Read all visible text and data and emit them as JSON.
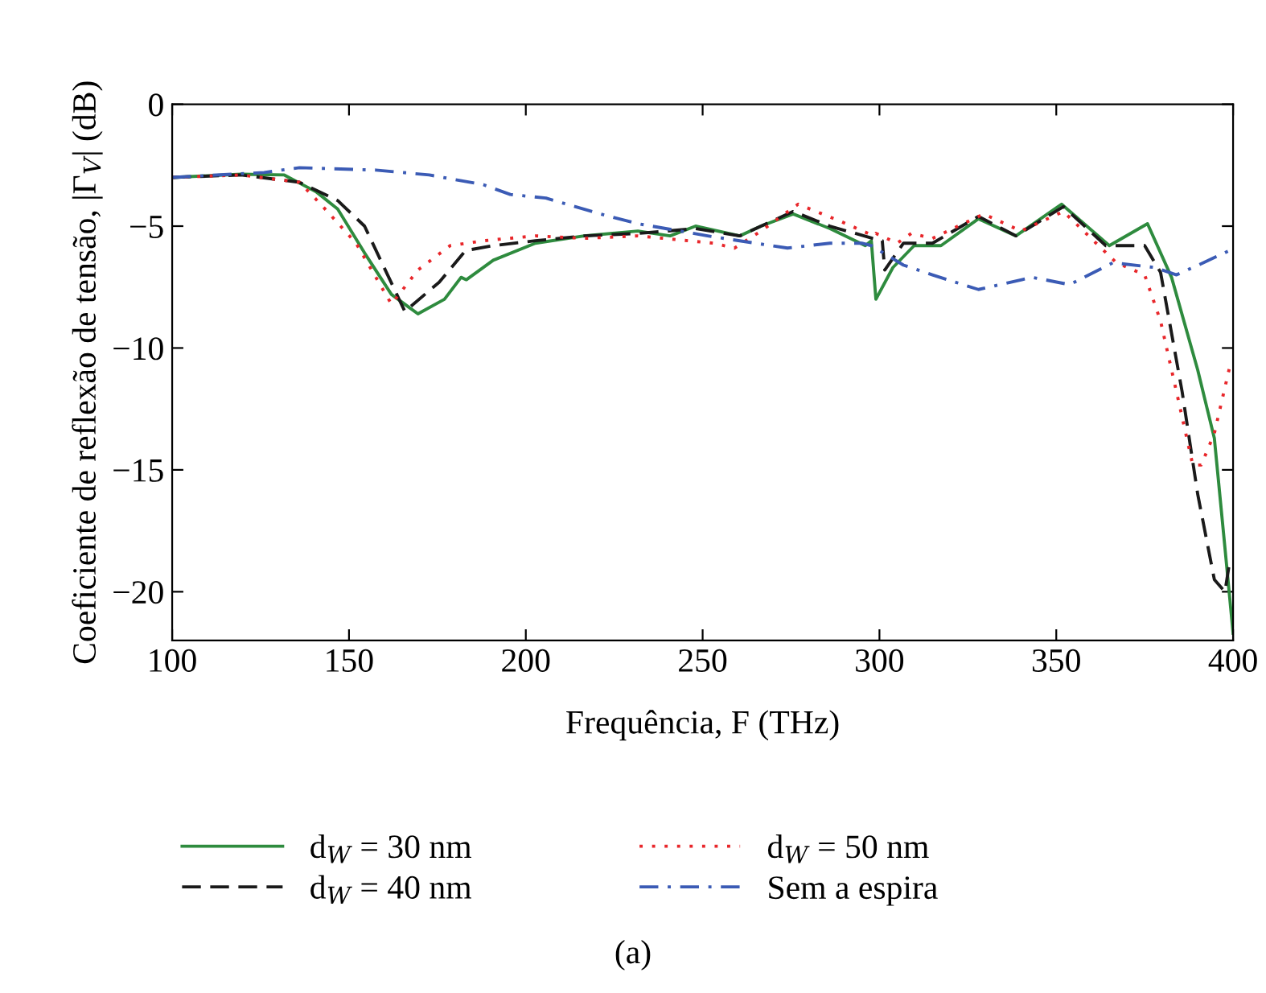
{
  "chart_data": {
    "type": "line",
    "xlabel": "Frequência, F (THz)",
    "ylabel": "Coeficiente de reflexão de tensão, |Γ$_{V}$| (dB)",
    "annotations": [
      "(a)"
    ],
    "xlim": [
      100,
      400
    ],
    "ylim": [
      -22,
      0
    ],
    "xticks": [
      100,
      150,
      200,
      250,
      300,
      350,
      400
    ],
    "yticks": [
      0,
      {
        "value": -5,
        "label": "−5"
      },
      {
        "value": -10,
        "label": "−10"
      },
      {
        "value": -15,
        "label": "−15"
      },
      {
        "value": -20,
        "label": "−20"
      }
    ],
    "grid": false,
    "legend": "bottom",
    "series": [
      {
        "name": "d$_{W}$ = 30 nm",
        "color": "#2e8b3e",
        "line_style": "solid",
        "x": [
          100,
          119.5,
          131.7,
          140.8,
          146.8,
          154.4,
          162,
          169.5,
          177,
          181.7,
          183.2,
          190.8,
          202.7,
          216.5,
          231.7,
          240.8,
          248,
          260.5,
          266.5,
          275.6,
          286,
          296,
          297.7,
          299,
          303.8,
          309.8,
          317.4,
          328,
          338.6,
          351.5,
          365,
          375.8,
          382.6,
          390,
          394.7,
          397.7,
          400
        ],
        "values": [
          -3.0,
          -2.87,
          -2.9,
          -3.6,
          -4.3,
          -6.1,
          -7.8,
          -8.6,
          -8.0,
          -7.1,
          -7.2,
          -6.4,
          -5.7,
          -5.4,
          -5.2,
          -5.4,
          -5.0,
          -5.4,
          -5.0,
          -4.5,
          -5.1,
          -5.8,
          -5.6,
          -8.0,
          -6.7,
          -5.8,
          -5.8,
          -4.7,
          -5.4,
          -4.1,
          -5.8,
          -4.9,
          -7.1,
          -10.9,
          -13.7,
          -18.2,
          -21.7
        ]
      },
      {
        "name": "d$_{W}$ = 40 nm",
        "color": "#1a1a1a",
        "line_style": "dashed",
        "x": [
          100,
          119.5,
          136,
          146.8,
          154.4,
          165.8,
          175.5,
          183,
          190.8,
          202.7,
          216.5,
          231.7,
          248,
          260.5,
          275.6,
          286,
          298,
          300.8,
          301.5,
          306.8,
          315,
          328,
          338.6,
          352,
          364,
          375,
          379.5,
          385.6,
          390,
          394.7,
          397.7,
          399,
          400
        ],
        "values": [
          -3.0,
          -2.9,
          -3.2,
          -3.95,
          -5.0,
          -8.5,
          -7.3,
          -6.0,
          -5.8,
          -5.6,
          -5.4,
          -5.3,
          -5.1,
          -5.4,
          -4.4,
          -5.0,
          -5.5,
          -5.6,
          -6.8,
          -5.7,
          -5.7,
          -4.6,
          -5.4,
          -4.2,
          -5.8,
          -5.8,
          -6.9,
          -11.8,
          -16.0,
          -19.5,
          -20.0,
          -18.8,
          -18.8
        ]
      },
      {
        "name": "d$_{W}$ = 50 nm",
        "color": "#e8262a",
        "line_style": "dotted",
        "x": [
          100,
          119.5,
          136,
          142,
          152,
          162,
          169.5,
          178.6,
          188,
          202.7,
          216.5,
          231.7,
          253,
          259,
          266.5,
          277,
          289,
          298.4,
          299,
          305,
          309,
          315,
          329.5,
          340,
          352,
          367,
          375,
          379.5,
          384,
          388.6,
          391,
          394.7,
          399
        ],
        "values": [
          -3.0,
          -2.9,
          -3.2,
          -4.1,
          -5.7,
          -8.2,
          -6.8,
          -5.8,
          -5.6,
          -5.4,
          -5.5,
          -5.4,
          -5.7,
          -5.9,
          -5.2,
          -4.1,
          -4.8,
          -5.4,
          -5.3,
          -5.7,
          -5.3,
          -5.5,
          -4.5,
          -5.2,
          -4.4,
          -6.5,
          -7.0,
          -8.9,
          -11.8,
          -14.8,
          -14.8,
          -13.5,
          -10.8
        ]
      },
      {
        "name": "Sem a espira",
        "color": "#3b5bb5",
        "line_style": "dashdot",
        "x": [
          100,
          126,
          136,
          157.6,
          172.7,
          188,
          195.6,
          205.7,
          221,
          231.7,
          251.4,
          274,
          286,
          295,
          297.7,
          306.8,
          315,
          328,
          343.2,
          353.8,
          366,
          378,
          384,
          391.6,
          399
        ],
        "values": [
          -3.0,
          -2.8,
          -2.6,
          -2.7,
          -2.9,
          -3.3,
          -3.7,
          -3.85,
          -4.5,
          -4.9,
          -5.4,
          -5.9,
          -5.7,
          -5.7,
          -5.8,
          -6.6,
          -7.0,
          -7.6,
          -7.1,
          -7.4,
          -6.5,
          -6.7,
          -7.0,
          -6.5,
          -6.0
        ]
      }
    ]
  }
}
